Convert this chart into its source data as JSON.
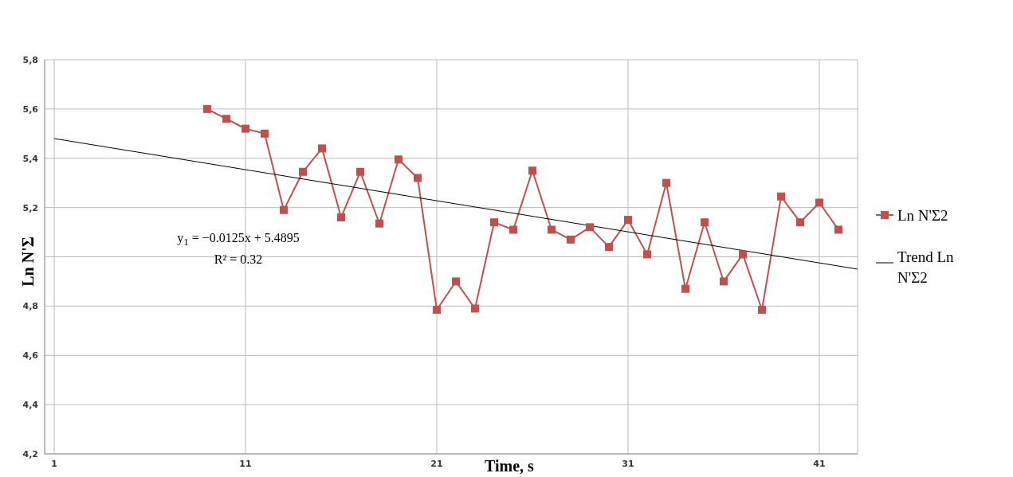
{
  "chart_data": {
    "type": "line",
    "xlabel": "Time, s",
    "ylabel": "Ln N'Σ",
    "x": [
      9,
      10,
      11,
      12,
      13,
      14,
      15,
      16,
      17,
      18,
      19,
      20,
      21,
      22,
      23,
      24,
      25,
      26,
      27,
      28,
      29,
      30,
      31,
      32,
      33,
      34,
      35,
      36,
      37,
      38,
      39,
      40,
      41,
      42
    ],
    "series": [
      {
        "name": "Ln N'Σ2",
        "color": "#c0504d",
        "values": [
          5.6,
          5.56,
          5.52,
          5.5,
          5.19,
          5.345,
          5.44,
          5.16,
          5.345,
          5.135,
          5.395,
          5.32,
          4.785,
          4.9,
          4.79,
          5.14,
          5.11,
          5.35,
          5.11,
          5.07,
          5.12,
          5.04,
          5.15,
          5.01,
          5.3,
          4.87,
          5.14,
          4.9,
          5.01,
          4.785,
          5.245,
          5.14,
          5.22,
          5.11
        ]
      },
      {
        "name": "Trend Ln N'Σ2",
        "color": "#000000",
        "type": "line",
        "marker": "none",
        "x": [
          1,
          43
        ],
        "values": [
          5.48,
          4.95
        ]
      }
    ],
    "marker": "square",
    "xlim": [
      0.5,
      43
    ],
    "xticks": [
      1,
      11,
      21,
      31,
      41
    ],
    "ylim": [
      4.2,
      5.8
    ],
    "yticks": [
      {
        "value": 4.2,
        "label": "4,2"
      },
      {
        "value": 4.4,
        "label": "4,4"
      },
      {
        "value": 4.6,
        "label": "4,6"
      },
      {
        "value": 4.8,
        "label": "4,8"
      },
      {
        "value": 5.0,
        "label": null
      },
      {
        "value": 5.2,
        "label": "5,2"
      },
      {
        "value": 5.4,
        "label": "5,4"
      },
      {
        "value": 5.6,
        "label": "5,6"
      },
      {
        "value": 5.8,
        "label": "5,8"
      }
    ],
    "grid": true,
    "legend": "right",
    "annotations": [
      "y$_{1}$ = −0.0125x + 5.4895",
      "R² = 0.32"
    ]
  }
}
